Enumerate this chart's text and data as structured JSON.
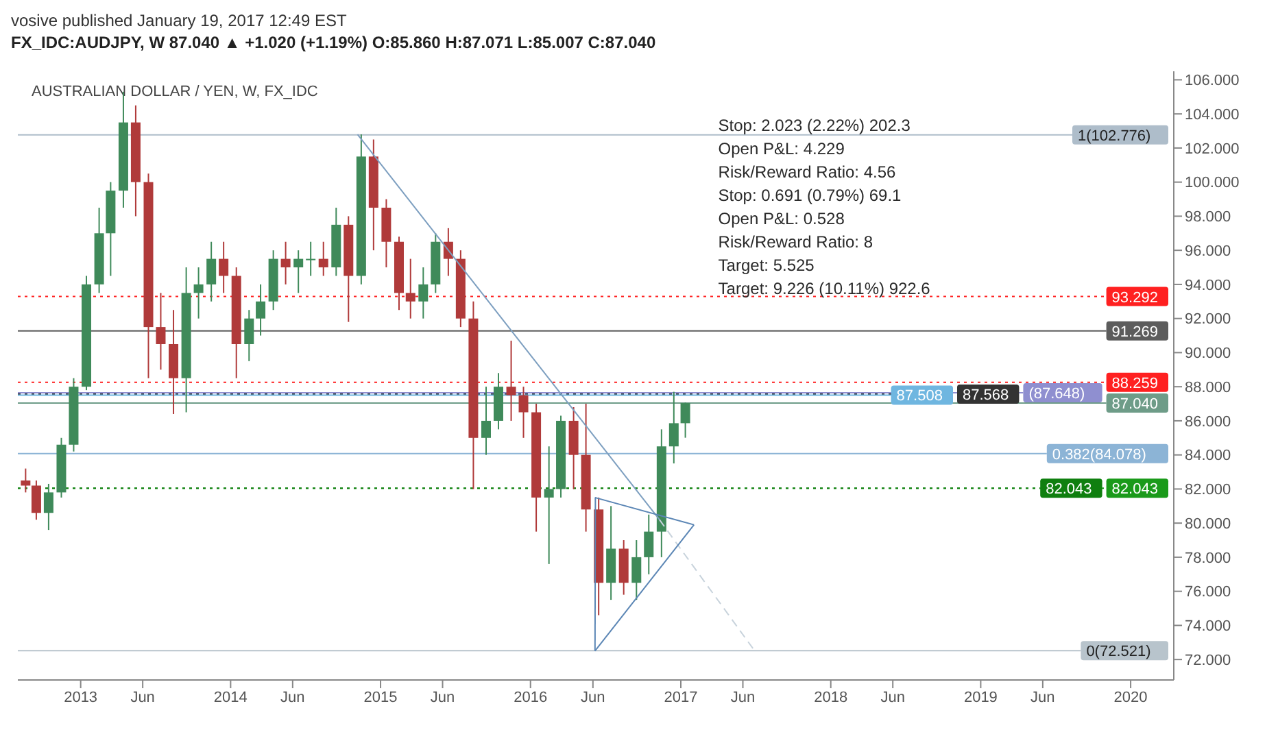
{
  "chart_data": {
    "type": "candlestick",
    "title": "FX_IDC:AUDJPY, W  87.040 ▲ +1.020 (+1.19%)  O:85.860  H:87.071  L:85.007  C:87.040",
    "subtitle": "AUSTRALIAN DOLLAR / YEN, W, FX_IDC",
    "x": [
      "2012-08-20",
      "2012-09-15",
      "2012-10-15",
      "2012-11-15",
      "2012-12-15",
      "2013-01-15",
      "2013-02-15",
      "2013-03-15",
      "2013-04-15",
      "2013-05-15",
      "2013-06-15",
      "2013-07-15",
      "2013-08-15",
      "2013-09-15",
      "2013-10-15",
      "2013-11-15",
      "2013-12-15",
      "2014-01-15",
      "2014-02-15",
      "2014-03-15",
      "2014-04-15",
      "2014-05-15",
      "2014-06-15",
      "2014-07-15",
      "2014-08-15",
      "2014-09-15",
      "2014-10-15",
      "2014-11-15",
      "2014-12-15",
      "2015-01-15",
      "2015-02-15",
      "2015-03-15",
      "2015-04-15",
      "2015-05-15",
      "2015-06-15",
      "2015-07-15",
      "2015-08-15",
      "2015-09-15",
      "2015-10-15",
      "2015-11-15",
      "2015-12-15",
      "2016-01-15",
      "2016-02-15",
      "2016-03-15",
      "2016-04-15",
      "2016-05-15",
      "2016-06-15",
      "2016-07-15",
      "2016-08-15",
      "2016-09-15",
      "2016-10-15",
      "2016-11-15",
      "2016-12-15",
      "2017-01-12"
    ],
    "ohlc": [
      [
        82.5,
        83.2,
        81.8,
        82.2
      ],
      [
        82.2,
        82.5,
        80.2,
        80.6
      ],
      [
        80.6,
        82.3,
        79.6,
        81.8
      ],
      [
        81.8,
        85.0,
        81.5,
        84.6
      ],
      [
        84.6,
        88.5,
        84.2,
        88.0
      ],
      [
        88.0,
        94.5,
        87.8,
        94.0
      ],
      [
        94.0,
        98.5,
        93.5,
        97.0
      ],
      [
        97.0,
        100.0,
        94.5,
        99.5
      ],
      [
        99.5,
        105.3,
        98.5,
        103.5
      ],
      [
        103.5,
        104.5,
        98.0,
        100.0
      ],
      [
        100.0,
        100.5,
        88.5,
        91.5
      ],
      [
        91.5,
        93.5,
        89.0,
        90.5
      ],
      [
        90.5,
        92.5,
        86.4,
        88.5
      ],
      [
        88.5,
        95.0,
        86.5,
        93.5
      ],
      [
        93.5,
        95.0,
        92.0,
        94.0
      ],
      [
        94.0,
        96.5,
        93.0,
        95.5
      ],
      [
        95.5,
        96.5,
        93.5,
        94.5
      ],
      [
        94.5,
        95.0,
        88.5,
        90.5
      ],
      [
        90.5,
        92.5,
        89.5,
        92.0
      ],
      [
        92.0,
        94.0,
        91.0,
        93.0
      ],
      [
        93.0,
        96.0,
        92.5,
        95.5
      ],
      [
        95.5,
        96.5,
        94.0,
        95.0
      ],
      [
        95.0,
        96.0,
        93.5,
        95.5
      ],
      [
        95.5,
        96.5,
        94.5,
        95.5
      ],
      [
        95.5,
        96.5,
        94.5,
        95.0
      ],
      [
        95.0,
        98.5,
        94.5,
        97.5
      ],
      [
        97.5,
        98.0,
        91.8,
        94.5
      ],
      [
        94.5,
        102.8,
        94.0,
        101.5
      ],
      [
        101.5,
        102.5,
        96.0,
        98.5
      ],
      [
        98.5,
        99.0,
        95.0,
        96.5
      ],
      [
        96.5,
        96.8,
        92.5,
        93.5
      ],
      [
        93.5,
        95.5,
        92.0,
        93.0
      ],
      [
        93.0,
        95.0,
        92.0,
        94.0
      ],
      [
        94.0,
        97.0,
        93.5,
        96.5
      ],
      [
        96.5,
        97.3,
        94.5,
        95.5
      ],
      [
        95.5,
        96.0,
        91.5,
        92.0
      ],
      [
        92.0,
        93.0,
        82.0,
        85.0
      ],
      [
        85.0,
        88.0,
        84.0,
        86.0
      ],
      [
        86.0,
        88.8,
        85.5,
        88.0
      ],
      [
        88.0,
        90.7,
        86.0,
        87.5
      ],
      [
        87.5,
        88.0,
        85.0,
        86.5
      ],
      [
        86.5,
        87.0,
        79.5,
        81.5
      ],
      [
        81.5,
        84.5,
        77.6,
        82.0
      ],
      [
        82.0,
        86.3,
        81.5,
        86.0
      ],
      [
        86.0,
        86.8,
        82.0,
        84.0
      ],
      [
        84.0,
        87.0,
        79.5,
        80.8
      ],
      [
        80.8,
        81.5,
        74.6,
        76.5
      ],
      [
        76.5,
        81.0,
        75.5,
        78.5
      ],
      [
        78.5,
        79.0,
        75.8,
        76.5
      ],
      [
        76.5,
        79.0,
        75.5,
        78.0
      ],
      [
        78.0,
        80.5,
        77.0,
        79.5
      ],
      [
        79.5,
        85.5,
        78.0,
        84.5
      ],
      [
        84.5,
        87.7,
        83.5,
        85.86
      ],
      [
        85.86,
        87.071,
        85.007,
        87.04
      ]
    ],
    "series": [
      {
        "type": "line",
        "color": "#7d9fc0",
        "x": [
          "2014-11-06",
          "2016-11-10"
        ],
        "values": [
          102.8,
          80.2
        ]
      },
      {
        "type": "line",
        "color": "#c8d3dc",
        "line_style": "dashed",
        "x": [
          "2016-11-10",
          "2017-06-30"
        ],
        "values": [
          80.2,
          72.5
        ]
      },
      {
        "type": "line",
        "color": "#5b86b5",
        "x": [
          "2016-06-06",
          "2017-02-02"
        ],
        "values": [
          81.5,
          79.9
        ]
      },
      {
        "type": "line",
        "color": "#5b86b5",
        "x": [
          "2016-06-06",
          "2017-02-02"
        ],
        "values": [
          72.5,
          79.9
        ]
      },
      {
        "type": "line",
        "color": "#5b86b5",
        "x": [
          "2016-06-06",
          "2016-06-07"
        ],
        "values": [
          72.5,
          81.5
        ]
      }
    ],
    "ref_lines": [
      {
        "axis": "y",
        "value": 102.776,
        "label": "1(102.776)",
        "color": "#aebdca"
      },
      {
        "axis": "y",
        "value": 93.292,
        "label": "93.292",
        "color": "#ff2020",
        "line_style": "dotted"
      },
      {
        "axis": "y",
        "value": 91.269,
        "label": "91.269",
        "color": "#5c5c5c"
      },
      {
        "axis": "y",
        "value": 88.259,
        "label": "88.259",
        "color": "#ff2020",
        "line_style": "dotted"
      },
      {
        "axis": "y",
        "value": 87.648,
        "label": "(87.648)",
        "color": "#8f8fd0"
      },
      {
        "axis": "y",
        "value": 87.568,
        "label": "87.568",
        "color": "#333333",
        "line_style": "dotted"
      },
      {
        "axis": "y",
        "value": 87.508,
        "label": "87.508",
        "color": "#6fb6e0"
      },
      {
        "axis": "y",
        "value": 87.04,
        "label": "87.040",
        "color": "#6e9c88"
      },
      {
        "axis": "y",
        "value": 84.078,
        "label": "0.382(84.078)",
        "color": "#8cb4d6"
      },
      {
        "axis": "y",
        "value": 82.043,
        "label": "82.043",
        "color": "#1a9a1a",
        "line_style": "dotted"
      },
      {
        "axis": "y",
        "value": 82.043,
        "label": "82.043",
        "color": "#0f7f0f",
        "line_style": "dotted"
      },
      {
        "axis": "y",
        "value": 72.521,
        "label": "0(72.521)",
        "color": "#b8c4cc"
      }
    ],
    "annotations": [
      "vosive published January 19, 2017 12:49 EST",
      "Stop: 2.023 (2.22%) 202.3",
      "Open P&L: 4.229",
      "Risk/Reward Ratio: 4.56",
      "Stop: 0.691 (0.79%) 69.1",
      "Open P&L: 0.528",
      "Risk/Reward Ratio: 8",
      "Target: 5.525",
      "Target: 9.226 (10.11%) 922.6"
    ],
    "xlim": [
      "2012-08-01",
      "2020-04-15"
    ],
    "xticks": [
      {
        "value": "2013-01-01",
        "label": "2013"
      },
      {
        "value": "2013-06-01",
        "label": "Jun"
      },
      {
        "value": "2014-01-01",
        "label": "2014"
      },
      {
        "value": "2014-06-01",
        "label": "Jun"
      },
      {
        "value": "2015-01-01",
        "label": "2015"
      },
      {
        "value": "2015-06-01",
        "label": "Jun"
      },
      {
        "value": "2016-01-01",
        "label": "2016"
      },
      {
        "value": "2016-06-01",
        "label": "Jun"
      },
      {
        "value": "2017-01-01",
        "label": "2017"
      },
      {
        "value": "2017-06-01",
        "label": "Jun"
      },
      {
        "value": "2018-01-01",
        "label": "2018"
      },
      {
        "value": "2018-06-01",
        "label": "Jun"
      },
      {
        "value": "2019-01-01",
        "label": "2019"
      },
      {
        "value": "2019-06-01",
        "label": "Jun"
      },
      {
        "value": "2020-01-01",
        "label": "2020"
      }
    ],
    "ylim": [
      70.8,
      106.5
    ],
    "yticks": [
      {
        "value": 72,
        "label": "72.000"
      },
      {
        "value": 74,
        "label": "74.000"
      },
      {
        "value": 76,
        "label": "76.000"
      },
      {
        "value": 78,
        "label": "78.000"
      },
      {
        "value": 80,
        "label": "80.000"
      },
      {
        "value": 82,
        "label": "82.000"
      },
      {
        "value": 84,
        "label": "84.000"
      },
      {
        "value": 86,
        "label": "86.000"
      },
      {
        "value": 88,
        "label": "88.000"
      },
      {
        "value": 90,
        "label": "90.000"
      },
      {
        "value": 92,
        "label": "92.000"
      },
      {
        "value": 94,
        "label": "94.000"
      },
      {
        "value": 96,
        "label": "96.000"
      },
      {
        "value": 98,
        "label": "98.000"
      },
      {
        "value": 100,
        "label": "100.000"
      },
      {
        "value": 102,
        "label": "102.000"
      },
      {
        "value": 104,
        "label": "104.000"
      },
      {
        "value": 106,
        "label": "106.000"
      }
    ]
  }
}
